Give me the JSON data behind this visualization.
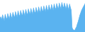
{
  "values": [
    55,
    62,
    48,
    70,
    58,
    45,
    72,
    60,
    50,
    75,
    63,
    52,
    78,
    65,
    55,
    80,
    68,
    57,
    83,
    70,
    60,
    86,
    72,
    62,
    88,
    75,
    64,
    90,
    77,
    66,
    92,
    79,
    68,
    94,
    81,
    70,
    96,
    83,
    72,
    98,
    85,
    74,
    100,
    87,
    76,
    102,
    89,
    78,
    104,
    91,
    80,
    106,
    93,
    82,
    108,
    95,
    84,
    110,
    97,
    86,
    112,
    99,
    88,
    114,
    101,
    90,
    116,
    103,
    92,
    118,
    105,
    94,
    120,
    107,
    96,
    118,
    104,
    92,
    116,
    102,
    90,
    114,
    100,
    88,
    18,
    10,
    8,
    6,
    14,
    20,
    32,
    42,
    55,
    68,
    78,
    88,
    95,
    102,
    108,
    115
  ],
  "line_color": "#5ab3f0",
  "fill_color": "#5ab3f0",
  "background_color": "#ffffff",
  "ylim_min": 0,
  "ylim_max": 130
}
